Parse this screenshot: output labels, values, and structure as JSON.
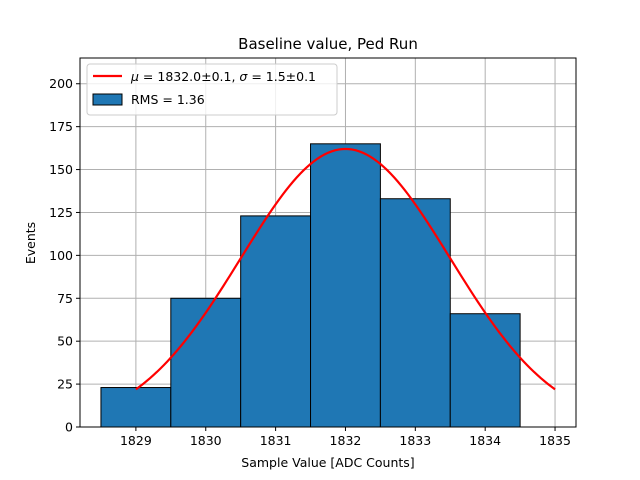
{
  "chart_data": {
    "type": "bar",
    "title": "Baseline value, Ped Run",
    "xlabel": "Sample Value [ADC Counts]",
    "ylabel": "Events",
    "xlim": [
      1828.2,
      1835.3
    ],
    "ylim": [
      0,
      215
    ],
    "grid": true,
    "legend_position": "top-left",
    "x_ticks": [
      1829,
      1830,
      1831,
      1832,
      1833,
      1834,
      1835
    ],
    "y_ticks": [
      0,
      25,
      50,
      75,
      100,
      125,
      150,
      175,
      200
    ],
    "histogram": {
      "name": "RMS = 1.36",
      "color": "#1f77b4",
      "edgecolor": "#000000",
      "bins": [
        {
          "x0": 1828.5,
          "x1": 1829.5,
          "count": 23
        },
        {
          "x0": 1829.5,
          "x1": 1830.5,
          "count": 75
        },
        {
          "x0": 1830.5,
          "x1": 1831.5,
          "count": 123
        },
        {
          "x0": 1831.5,
          "x1": 1832.5,
          "count": 165
        },
        {
          "x0": 1832.5,
          "x1": 1833.5,
          "count": 133
        },
        {
          "x0": 1833.5,
          "x1": 1834.5,
          "count": 66
        }
      ]
    },
    "fit": {
      "type": "gaussian",
      "color": "#ff0000",
      "mu": 1832.0,
      "sigma": 1.5,
      "amplitude": 162,
      "x_range": [
        1829,
        1835
      ],
      "legend": {
        "mu_symbol": "μ",
        "mu_text": " = 1832.0±0.1, ",
        "sigma_symbol": "σ",
        "sigma_text": " = 1.5±0.1"
      }
    }
  }
}
